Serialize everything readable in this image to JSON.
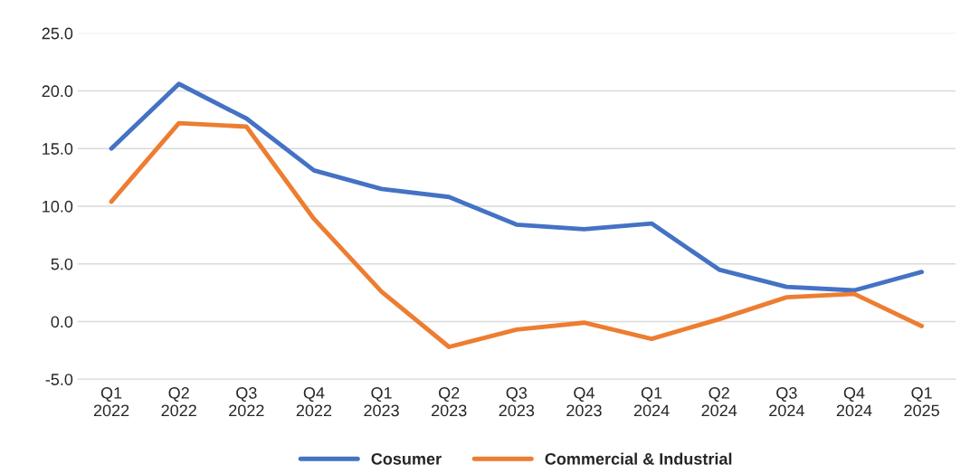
{
  "chart_data": {
    "type": "line",
    "categories": [
      "Q1\n2022",
      "Q2\n2022",
      "Q3\n2022",
      "Q4\n2022",
      "Q1\n2023",
      "Q2\n2023",
      "Q3\n2023",
      "Q4\n2023",
      "Q1\n2024",
      "Q2\n2024",
      "Q3\n2024",
      "Q4\n2024",
      "Q1\n2025"
    ],
    "series": [
      {
        "name": "Cosumer",
        "color": "#4472c4",
        "values": [
          15.0,
          20.6,
          17.6,
          13.1,
          11.5,
          10.8,
          8.4,
          8.0,
          8.5,
          4.5,
          3.0,
          2.7,
          4.3
        ]
      },
      {
        "name": "Commercial & Industrial",
        "color": "#ed7d31",
        "values": [
          10.4,
          17.2,
          16.9,
          8.9,
          2.6,
          -2.2,
          -0.7,
          -0.1,
          -1.5,
          0.2,
          2.1,
          2.4,
          -0.4
        ]
      }
    ],
    "ylim": [
      -5,
      25
    ],
    "yticks": [
      {
        "value": -5,
        "label": "-5.0"
      },
      {
        "value": 0,
        "label": "0.0"
      },
      {
        "value": 5,
        "label": "5.0"
      },
      {
        "value": 10,
        "label": "10.0"
      },
      {
        "value": 15,
        "label": "15.0"
      },
      {
        "value": 20,
        "label": "20.0"
      },
      {
        "value": 25,
        "label": "25.0"
      }
    ],
    "grid": "y",
    "legend": "bottom",
    "marker": "none",
    "line_style": "solid"
  }
}
